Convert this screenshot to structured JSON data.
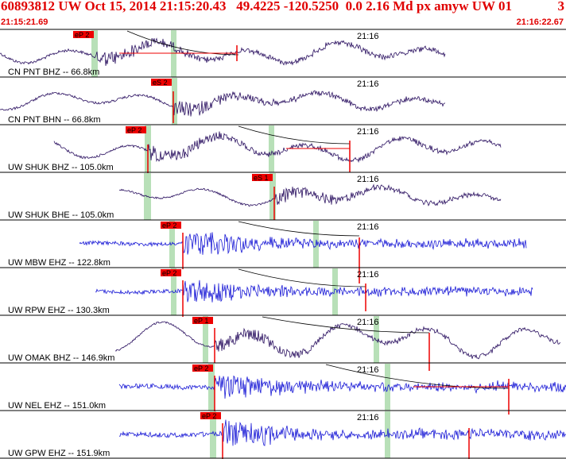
{
  "header": {
    "event_line": "60893812 UW Oct 15, 2014 21:15:20.43   49.4225 -120.5250  0.0 2.16 Md px amyw UW 01",
    "count": "3",
    "start_time": "21:15:21.69",
    "end_time": "21:16:22.67"
  },
  "colors": {
    "header": "#e00000",
    "pick": "#ee0000",
    "trace_short_period": "#1a1ad6",
    "trace_broadband": "#2a1060",
    "window": "#b8e0b8",
    "background": "#ffffff"
  },
  "traces": [
    {
      "label": "CN PNT BHZ -- 66.8km",
      "pick": "eP 2",
      "time_mark": "21:16",
      "color": "broadband"
    },
    {
      "label": "CN PNT BHN -- 66.8km",
      "pick": "eS 2",
      "time_mark": "21:16",
      "color": "broadband"
    },
    {
      "label": "UW SHUK BHZ -- 105.0km",
      "pick": "eP 2",
      "time_mark": "21:16",
      "color": "broadband"
    },
    {
      "label": "UW SHUK BHE -- 105.0km",
      "pick": "eS 1",
      "time_mark": "21:16",
      "color": "broadband"
    },
    {
      "label": "UW MBW EHZ -- 122.8km",
      "pick": "eP 2",
      "time_mark": "21:16",
      "color": "short_period"
    },
    {
      "label": "UW RPW EHZ -- 130.3km",
      "pick": "eP 2",
      "time_mark": "21:16",
      "color": "short_period"
    },
    {
      "label": "UW OMAK BHZ -- 146.9km",
      "pick": "eP 1",
      "time_mark": "21:16",
      "color": "broadband"
    },
    {
      "label": "UW NEL EHZ -- 151.0km",
      "pick": "eP 2",
      "time_mark": "21:16",
      "color": "short_period"
    },
    {
      "label": "UW GPW EHZ -- 151.9km",
      "pick": "eP 2",
      "time_mark": "21:16",
      "color": "short_period"
    }
  ]
}
